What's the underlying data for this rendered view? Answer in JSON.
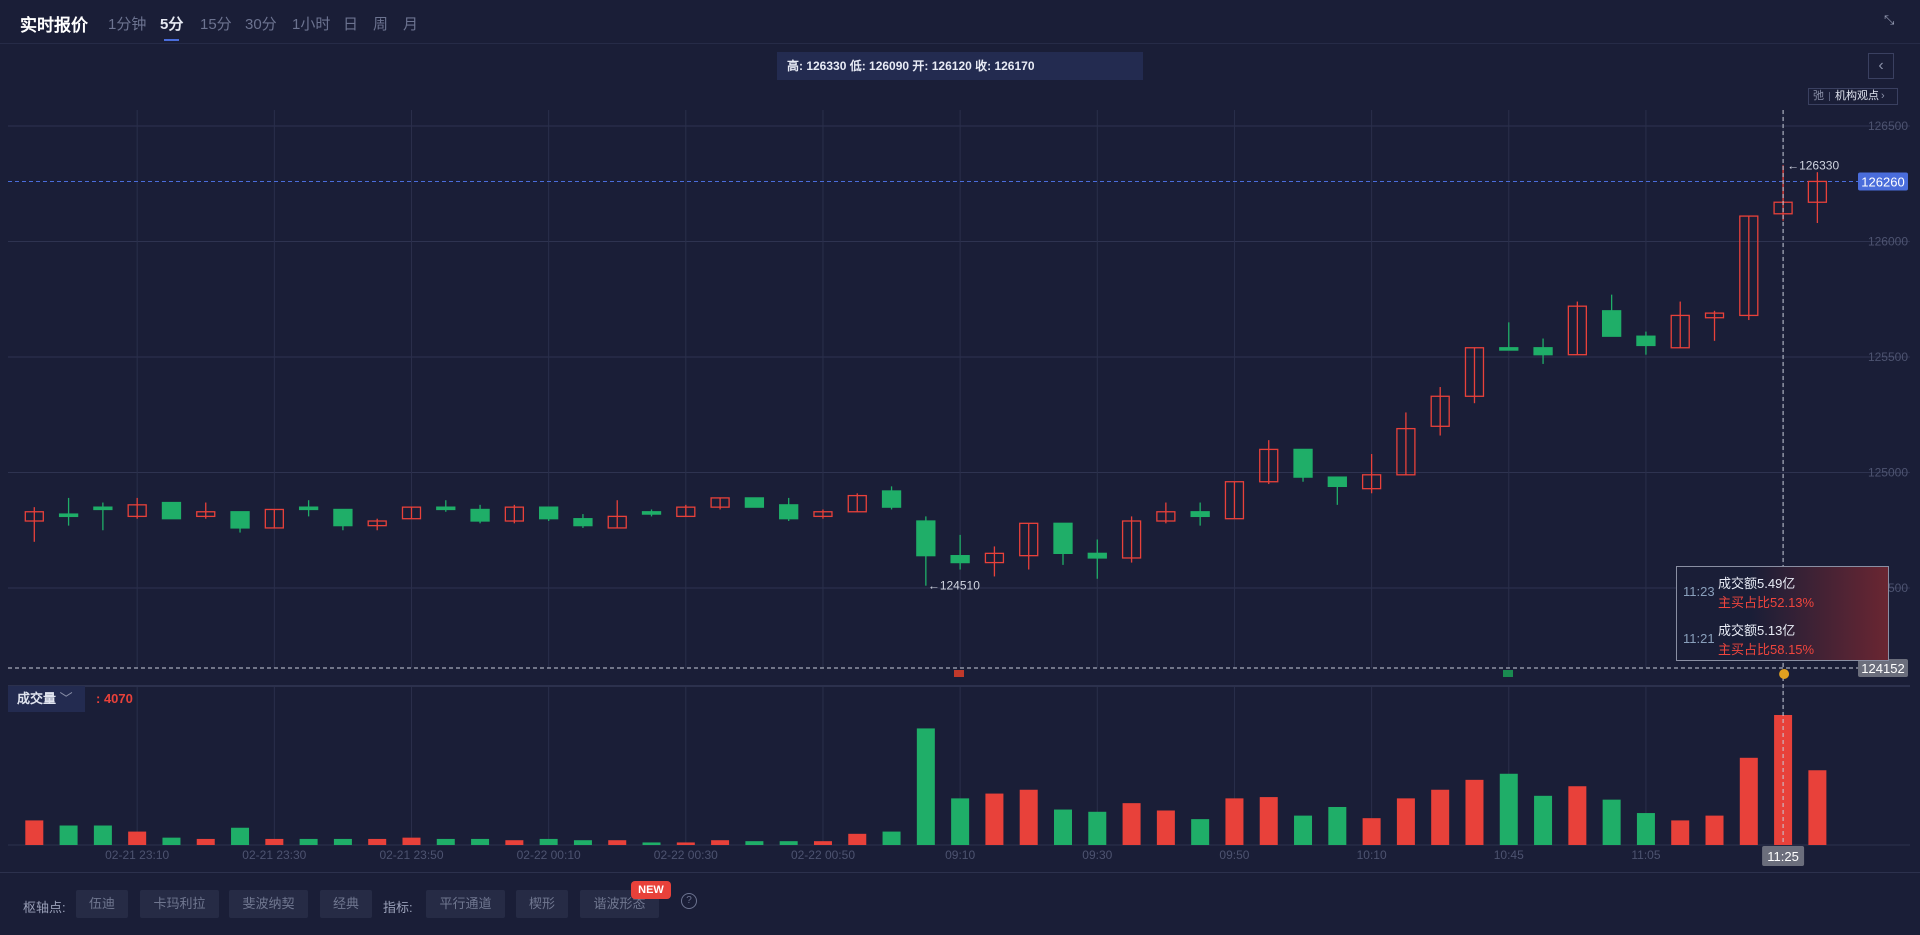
{
  "header": {
    "title": "实时报价",
    "tabs": [
      {
        "label": "1分钟",
        "active": false
      },
      {
        "label": "5分",
        "active": true
      },
      {
        "label": "15分",
        "active": false
      },
      {
        "label": "30分",
        "active": false
      },
      {
        "label": "1小时",
        "active": false
      },
      {
        "label": "日",
        "active": false
      },
      {
        "label": "周",
        "active": false
      },
      {
        "label": "月",
        "active": false
      }
    ],
    "collapse_icon": "collapse-arrows-icon"
  },
  "info_box": {
    "text": "高: 126330 低: 126090 开: 126120 收: 126170"
  },
  "side": {
    "back_icon": "chevron-left-icon",
    "chip_icon_text": "弛",
    "chip_label": "机构观点",
    "chip_arrow": "›"
  },
  "volume_panel": {
    "selector_label": "成交量",
    "current_value": ": 4070"
  },
  "tooltip": {
    "rows": [
      {
        "time": "11:23",
        "amount": "成交额5.49亿",
        "ratio": "主买占比52.13%"
      },
      {
        "time": "11:21",
        "amount": "成交额5.13亿",
        "ratio": "主买占比58.15%"
      }
    ]
  },
  "bottom_toolbar": {
    "pivot_label": "枢轴点:",
    "pivot_buttons": [
      "伍迪",
      "卡玛利拉",
      "斐波纳契",
      "经典"
    ],
    "indicator_label": "指标:",
    "indicator_buttons": [
      "平行通道",
      "楔形",
      "谐波形态"
    ],
    "new_badge": "NEW",
    "help": "?"
  },
  "colors": {
    "up": "#e8413a",
    "down": "#1fae68",
    "accent": "#4a6ddb",
    "background": "#1a1e37"
  },
  "chart_data": {
    "type": "candlestick",
    "ylim": [
      124152,
      126560
    ],
    "y_ticks": [
      126500,
      126000,
      125500,
      125000,
      124500
    ],
    "grid": true,
    "last_price": "126260",
    "max_marker": "←126330",
    "min_marker": "←124510",
    "crosshair": {
      "price": "124152",
      "time": "11:25"
    },
    "x_ticks": [
      {
        "at": "23:10",
        "label": "02-21 23:10"
      },
      {
        "at": "23:30",
        "label": "02-21 23:30"
      },
      {
        "at": "23:50",
        "label": "02-21 23:50"
      },
      {
        "at": "00:10",
        "label": "02-22 00:10"
      },
      {
        "at": "00:30",
        "label": "02-22 00:30"
      },
      {
        "at": "00:50",
        "label": "02-22 00:50"
      },
      {
        "at": "09:10",
        "label": "09:10"
      },
      {
        "at": "09:30",
        "label": "09:30"
      },
      {
        "at": "09:50",
        "label": "09:50"
      },
      {
        "at": "10:10",
        "label": "10:10"
      },
      {
        "at": "10:45",
        "label": "10:45"
      },
      {
        "at": "11:05",
        "label": "11:05"
      },
      {
        "at": "11:25",
        "label": "11:25"
      }
    ],
    "candle_fields": [
      "time",
      "open",
      "high",
      "low",
      "close",
      "volume"
    ],
    "candles": [
      [
        "22:55",
        124790,
        124850,
        124700,
        124830,
        770
      ],
      [
        "23:00",
        124820,
        124890,
        124770,
        124810,
        610
      ],
      [
        "23:05",
        124850,
        124870,
        124750,
        124840,
        610
      ],
      [
        "23:10",
        124810,
        124890,
        124800,
        124860,
        420
      ],
      [
        "23:15",
        124870,
        124870,
        124800,
        124800,
        230
      ],
      [
        "23:20",
        124810,
        124870,
        124800,
        124830,
        190
      ],
      [
        "23:25",
        124830,
        124830,
        124740,
        124760,
        540
      ],
      [
        "23:30",
        124760,
        124840,
        124760,
        124840,
        190
      ],
      [
        "23:35",
        124850,
        124880,
        124810,
        124840,
        190
      ],
      [
        "23:40",
        124840,
        124840,
        124750,
        124770,
        190
      ],
      [
        "23:45",
        124770,
        124800,
        124750,
        124790,
        190
      ],
      [
        "23:50",
        124800,
        124850,
        124800,
        124850,
        230
      ],
      [
        "23:55",
        124850,
        124880,
        124830,
        124840,
        190
      ],
      [
        "00:00",
        124840,
        124860,
        124780,
        124790,
        190
      ],
      [
        "00:05",
        124790,
        124860,
        124780,
        124850,
        150
      ],
      [
        "00:10",
        124850,
        124850,
        124790,
        124800,
        190
      ],
      [
        "00:15",
        124800,
        124820,
        124760,
        124770,
        150
      ],
      [
        "00:20",
        124760,
        124880,
        124760,
        124810,
        150
      ],
      [
        "00:25",
        124830,
        124840,
        124810,
        124820,
        80
      ],
      [
        "00:30",
        124810,
        124860,
        124810,
        124850,
        80
      ],
      [
        "00:35",
        124850,
        124890,
        124840,
        124890,
        150
      ],
      [
        "00:40",
        124890,
        124890,
        124850,
        124850,
        120
      ],
      [
        "00:45",
        124860,
        124890,
        124790,
        124800,
        120
      ],
      [
        "00:50",
        124810,
        124840,
        124800,
        124830,
        120
      ],
      [
        "00:55",
        124830,
        124910,
        124830,
        124900,
        350
      ],
      [
        "01:00",
        124920,
        124940,
        124840,
        124850,
        420
      ],
      [
        "09:05",
        124790,
        124810,
        124510,
        124640,
        3650
      ],
      [
        "09:10",
        124640,
        124730,
        124580,
        124610,
        1460
      ],
      [
        "09:15",
        124610,
        124680,
        124550,
        124650,
        1610
      ],
      [
        "09:20",
        124640,
        124780,
        124580,
        124780,
        1730
      ],
      [
        "09:25",
        124780,
        124780,
        124600,
        124650,
        1110
      ],
      [
        "09:30",
        124650,
        124710,
        124540,
        124630,
        1040
      ],
      [
        "09:35",
        124630,
        124810,
        124610,
        124790,
        1310
      ],
      [
        "09:40",
        124790,
        124870,
        124780,
        124830,
        1080
      ],
      [
        "09:45",
        124830,
        124870,
        124770,
        124810,
        810
      ],
      [
        "09:50",
        124800,
        124960,
        124800,
        124960,
        1460
      ],
      [
        "09:55",
        124960,
        125140,
        124950,
        125100,
        1500
      ],
      [
        "10:00",
        125100,
        125100,
        124960,
        124980,
        920
      ],
      [
        "10:05",
        124980,
        124980,
        124860,
        124940,
        1190
      ],
      [
        "10:10",
        124930,
        125080,
        124910,
        124990,
        840
      ],
      [
        "10:30",
        124990,
        125260,
        124990,
        125190,
        1460
      ],
      [
        "10:35",
        125200,
        125370,
        125160,
        125330,
        1730
      ],
      [
        "10:40",
        125330,
        125540,
        125300,
        125540,
        2040
      ],
      [
        "10:45",
        125540,
        125650,
        125530,
        125530,
        2230
      ],
      [
        "10:50",
        125540,
        125580,
        125470,
        125510,
        1540
      ],
      [
        "10:55",
        125510,
        125740,
        125510,
        125720,
        1840
      ],
      [
        "11:00",
        125700,
        125770,
        125590,
        125590,
        1420
      ],
      [
        "11:05",
        125590,
        125610,
        125510,
        125550,
        1000
      ],
      [
        "11:10",
        125540,
        125740,
        125540,
        125680,
        770
      ],
      [
        "11:15",
        125670,
        125700,
        125570,
        125690,
        920
      ],
      [
        "11:20",
        125680,
        126110,
        125660,
        126110,
        2730
      ],
      [
        "11:25",
        126120,
        126330,
        126090,
        126170,
        4070
      ],
      [
        "11:30",
        126170,
        126300,
        126080,
        126260,
        2340
      ]
    ]
  }
}
